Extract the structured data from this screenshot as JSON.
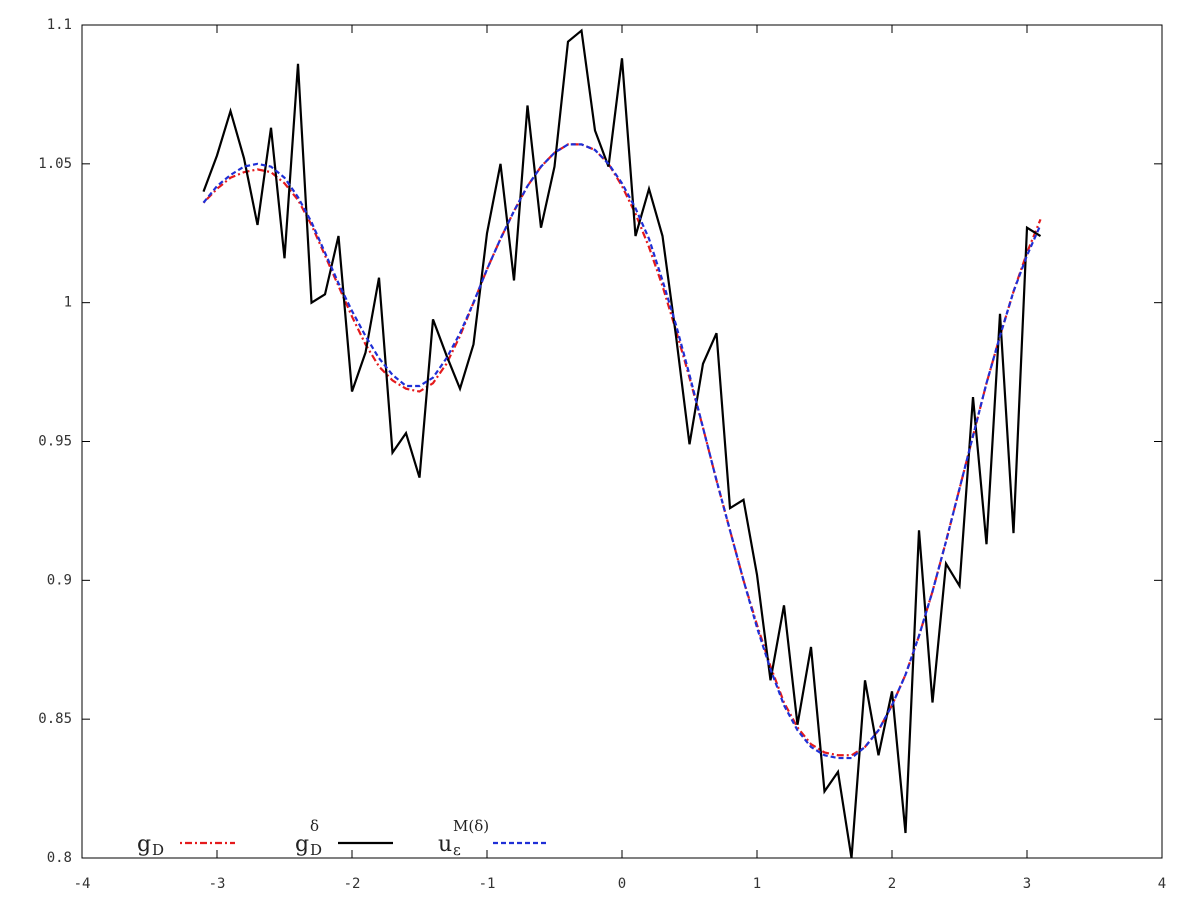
{
  "chart_data": {
    "type": "line",
    "x": [
      -3.1,
      -3.0,
      -2.9,
      -2.8,
      -2.7,
      -2.6,
      -2.5,
      -2.4,
      -2.3,
      -2.2,
      -2.1,
      -2.0,
      -1.9,
      -1.8,
      -1.7,
      -1.6,
      -1.5,
      -1.4,
      -1.3,
      -1.2,
      -1.1,
      -1.0,
      -0.9,
      -0.8,
      -0.7,
      -0.6,
      -0.5,
      -0.4,
      -0.3,
      -0.2,
      -0.1,
      0.0,
      0.1,
      0.2,
      0.3,
      0.4,
      0.5,
      0.6,
      0.7,
      0.8,
      0.9,
      1.0,
      1.1,
      1.2,
      1.3,
      1.4,
      1.5,
      1.6,
      1.7,
      1.8,
      1.9,
      2.0,
      2.1,
      2.2,
      2.3,
      2.4,
      2.5,
      2.6,
      2.7,
      2.8,
      2.9,
      3.0,
      3.1
    ],
    "series": [
      {
        "name": "g",
        "sub": "D",
        "color": "#e41a1c",
        "dash": "2,3,7,3",
        "values": [
          1.036,
          1.041,
          1.045,
          1.047,
          1.048,
          1.047,
          1.043,
          1.037,
          1.028,
          1.017,
          1.006,
          0.995,
          0.985,
          0.977,
          0.972,
          0.969,
          0.968,
          0.971,
          0.978,
          0.988,
          1.0,
          1.012,
          1.023,
          1.033,
          1.042,
          1.049,
          1.054,
          1.057,
          1.057,
          1.055,
          1.05,
          1.042,
          1.032,
          1.02,
          1.006,
          0.99,
          0.973,
          0.955,
          0.936,
          0.918,
          0.9,
          0.884,
          0.869,
          0.856,
          0.847,
          0.841,
          0.838,
          0.837,
          0.837,
          0.84,
          0.846,
          0.855,
          0.866,
          0.88,
          0.896,
          0.914,
          0.933,
          0.952,
          0.971,
          0.988,
          1.004,
          1.018,
          1.03
        ]
      },
      {
        "name": "g",
        "sub": "D",
        "sup": "δ",
        "color": "#000000",
        "dash": "",
        "values": [
          1.04,
          1.053,
          1.069,
          1.052,
          1.028,
          1.063,
          1.016,
          1.086,
          1.0,
          1.003,
          1.024,
          0.968,
          0.982,
          1.009,
          0.946,
          0.953,
          0.937,
          0.994,
          0.981,
          0.969,
          0.985,
          1.025,
          1.05,
          1.008,
          1.071,
          1.027,
          1.049,
          1.094,
          1.098,
          1.062,
          1.049,
          1.088,
          1.024,
          1.041,
          1.024,
          0.988,
          0.949,
          0.978,
          0.989,
          0.926,
          0.929,
          0.902,
          0.864,
          0.891,
          0.848,
          0.876,
          0.824,
          0.831,
          0.8,
          0.864,
          0.837,
          0.86,
          0.809,
          0.918,
          0.856,
          0.906,
          0.898,
          0.966,
          0.913,
          0.996,
          0.917,
          1.027,
          1.024
        ]
      },
      {
        "name": "u",
        "sub": "ε",
        "sup": "M(δ)",
        "color": "#1f2fd6",
        "dash": "5,3",
        "values": [
          1.036,
          1.042,
          1.046,
          1.049,
          1.05,
          1.049,
          1.045,
          1.038,
          1.029,
          1.018,
          1.007,
          0.997,
          0.988,
          0.98,
          0.974,
          0.97,
          0.97,
          0.973,
          0.98,
          0.989,
          1.0,
          1.012,
          1.023,
          1.033,
          1.042,
          1.049,
          1.054,
          1.057,
          1.057,
          1.055,
          1.05,
          1.043,
          1.034,
          1.023,
          1.008,
          0.992,
          0.974,
          0.955,
          0.936,
          0.918,
          0.9,
          0.883,
          0.868,
          0.855,
          0.846,
          0.84,
          0.837,
          0.836,
          0.836,
          0.84,
          0.846,
          0.855,
          0.866,
          0.88,
          0.896,
          0.914,
          0.933,
          0.952,
          0.971,
          0.988,
          1.004,
          1.017,
          1.028
        ]
      }
    ],
    "xlim": [
      -4,
      4
    ],
    "ylim": [
      0.8,
      1.1
    ],
    "xticks": [
      -4,
      -3,
      -2,
      -1,
      0,
      1,
      2,
      3,
      4
    ],
    "yticks": [
      0.8,
      0.85,
      0.9,
      0.95,
      1,
      1.05,
      1.1
    ],
    "legend": "bottom-left"
  }
}
